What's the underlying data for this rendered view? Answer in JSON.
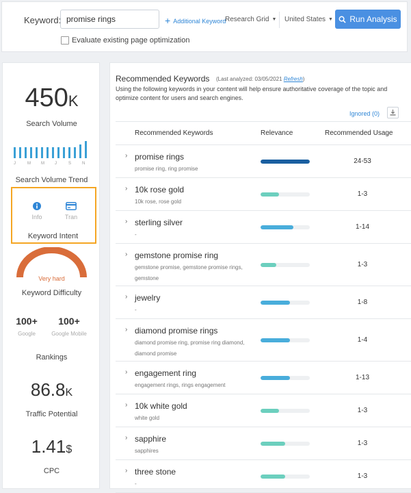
{
  "search_bar": {
    "keyword_label": "Keyword:",
    "keyword_value": "promise rings",
    "additional_keyword": "Additional Keyword",
    "grid_select": "Research Grid",
    "country_select": "United States",
    "run_button": "Run Analysis",
    "evaluate_label": "Evaluate existing page optimization"
  },
  "metrics": {
    "search_volume": {
      "value": "450",
      "unit": "K",
      "label": "Search Volume"
    },
    "trend": {
      "label": "Search Volume Trend",
      "months": [
        "J",
        "M",
        "M",
        "J",
        "S",
        "N"
      ],
      "values": [
        0.62,
        0.62,
        0.62,
        0.62,
        0.62,
        0.62,
        0.62,
        0.62,
        0.62,
        0.62,
        0.62,
        0.62,
        0.78,
        1.0
      ]
    },
    "intent": {
      "label": "Keyword Intent",
      "items": [
        "Info",
        "Tran"
      ]
    },
    "difficulty": {
      "label": "Keyword Difficulty",
      "value": "Very hard",
      "color": "#d96d3a"
    },
    "rankings": {
      "label": "Rankings",
      "google": {
        "value": "100+",
        "label": "Google"
      },
      "mobile": {
        "value": "100+",
        "label": "Google Mobile"
      }
    },
    "traffic": {
      "value": "86.8",
      "unit": "K",
      "label": "Traffic Potential"
    },
    "cpc": {
      "value": "1.41",
      "unit": "$",
      "label": "CPC"
    }
  },
  "recommended": {
    "title": "Recommended Keywords",
    "analyzed_prefix": "(Last analyzed: 03/05/2021",
    "refresh": "Refresh",
    "analyzed_suffix": ")",
    "description": "Using the following keywords in your content will help ensure authoritative coverage of the topic and optimize content for users and search engines.",
    "ignored": "Ignored (0)",
    "columns": [
      "Recommended Keywords",
      "Relevance",
      "Recommended Usage"
    ],
    "rows": [
      {
        "keyword": "promise rings",
        "sub": "promise ring,  ring promise",
        "relevance": 1.0,
        "color": "#1a5fa0",
        "usage": "24-53"
      },
      {
        "keyword": "10k rose gold",
        "sub": "10k rose,  rose gold",
        "relevance": 0.38,
        "color": "#6ccfbe",
        "usage": "1-3"
      },
      {
        "keyword": "sterling silver",
        "sub": "-",
        "relevance": 0.66,
        "color": "#49addb",
        "usage": "1-14"
      },
      {
        "keyword": "gemstone promise ring",
        "sub": "gemstone promise,  gemstone promise rings,  gemstone",
        "relevance": 0.32,
        "color": "#6ccfbe",
        "usage": "1-3"
      },
      {
        "keyword": "jewelry",
        "sub": "-",
        "relevance": 0.6,
        "color": "#49addb",
        "usage": "1-8"
      },
      {
        "keyword": "diamond promise rings",
        "sub": "diamond promise ring,  promise ring diamond,  diamond promise",
        "relevance": 0.6,
        "color": "#49addb",
        "usage": "1-4"
      },
      {
        "keyword": "engagement ring",
        "sub": "engagement rings,  rings engagement",
        "relevance": 0.6,
        "color": "#49addb",
        "usage": "1-13"
      },
      {
        "keyword": "10k white gold",
        "sub": "white gold",
        "relevance": 0.38,
        "color": "#6ccfbe",
        "usage": "1-3"
      },
      {
        "keyword": "sapphire",
        "sub": "sapphires",
        "relevance": 0.5,
        "color": "#6ccfbe",
        "usage": "1-3"
      },
      {
        "keyword": "three stone",
        "sub": "-",
        "relevance": 0.5,
        "color": "#6ccfbe",
        "usage": "1-3"
      }
    ]
  }
}
